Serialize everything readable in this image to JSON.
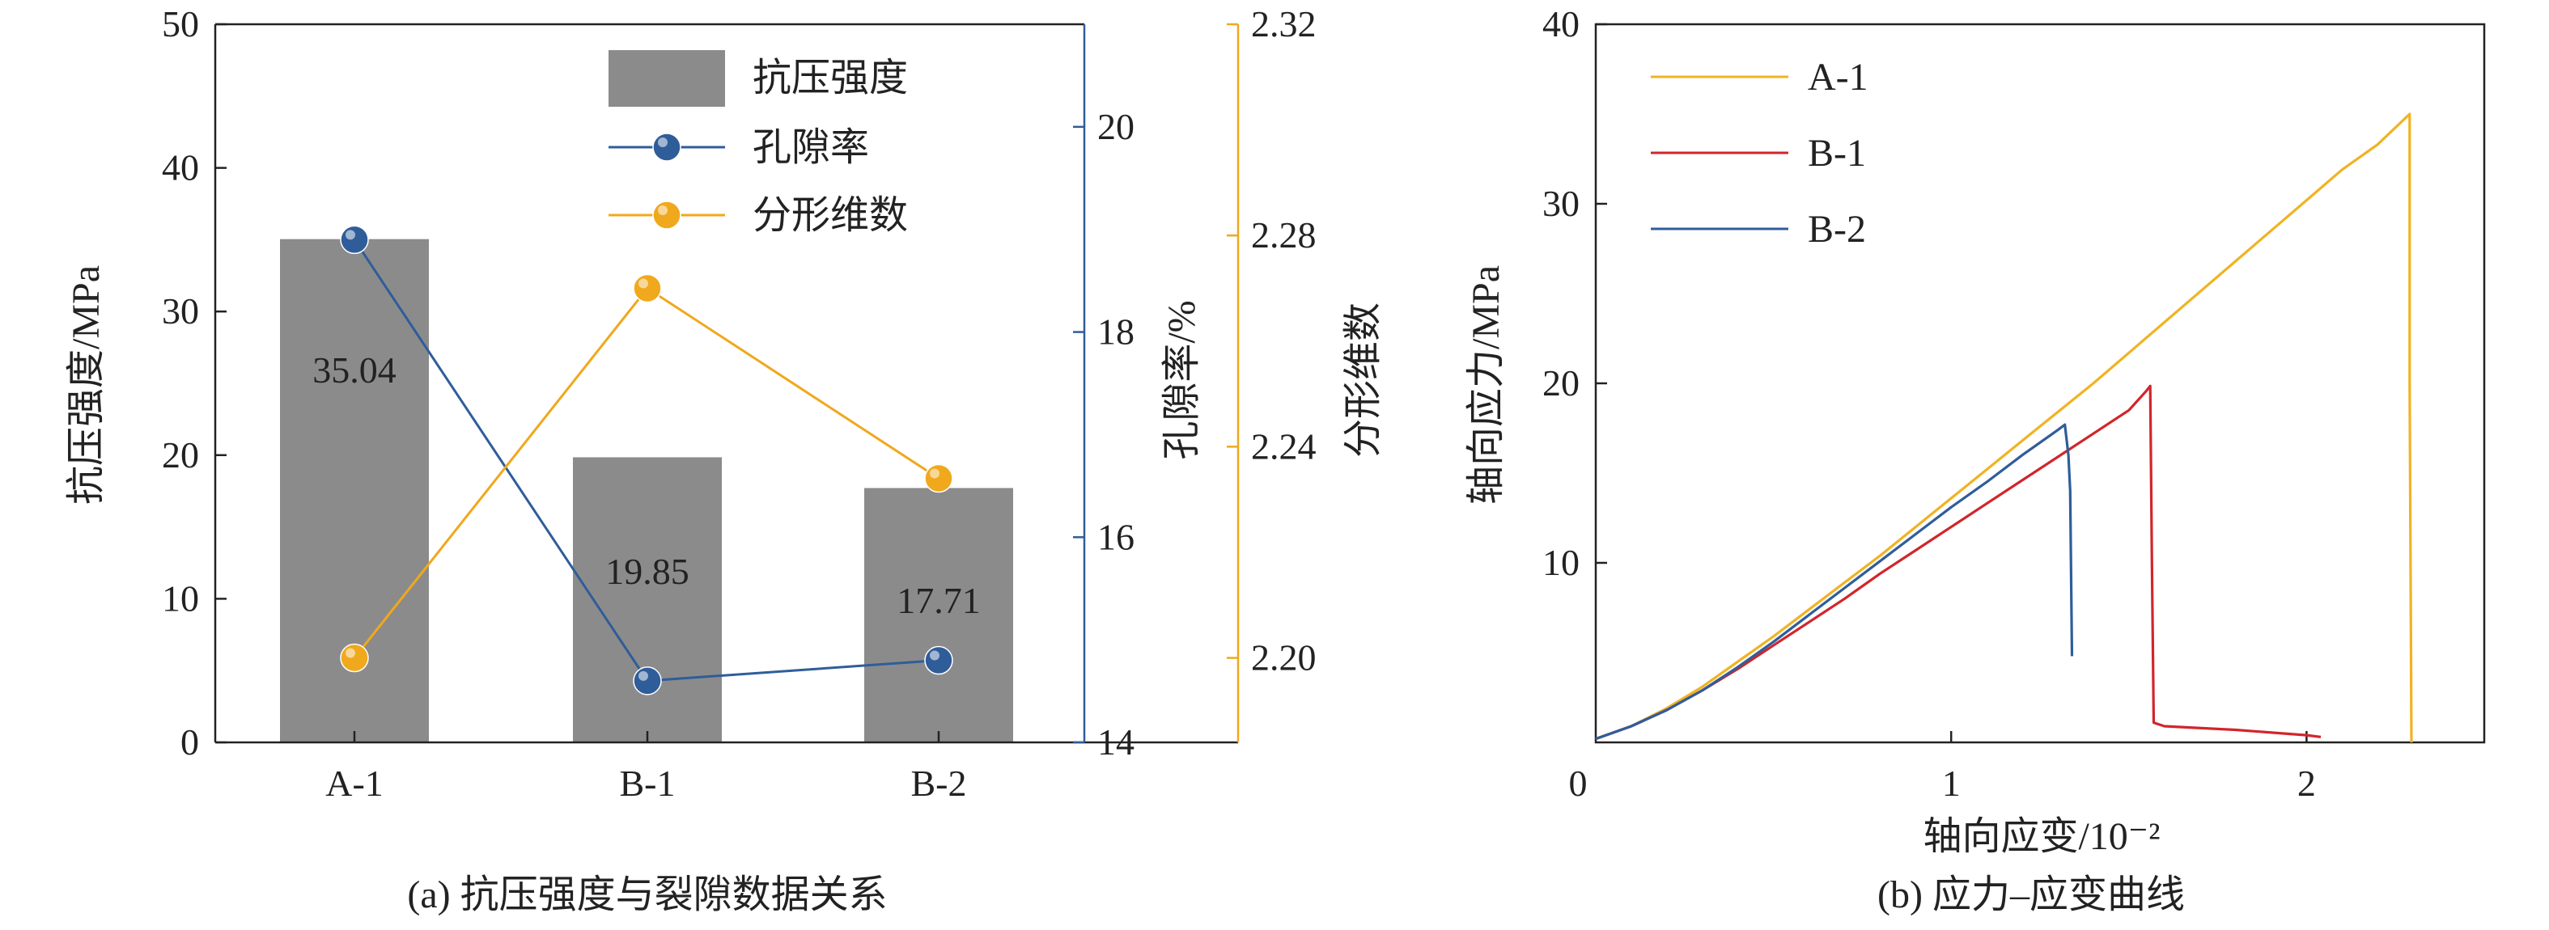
{
  "chart_data": [
    {
      "type": "bar",
      "caption": "(a) 抗压强度与裂隙数据关系",
      "categories": [
        "A-1",
        "B-1",
        "B-2"
      ],
      "series": [
        {
          "name": "抗压强度",
          "type": "bar",
          "axis": "left",
          "values": [
            35.04,
            19.85,
            17.71
          ],
          "labels": [
            "35.04",
            "19.85",
            "17.71"
          ],
          "color": "#8c8b8b"
        },
        {
          "name": "孔隙率",
          "type": "line",
          "axis": "right1",
          "values": [
            18.9,
            14.6,
            14.8
          ],
          "color": "#2f5d9a"
        },
        {
          "name": "分形维数",
          "type": "line",
          "axis": "right2",
          "values": [
            2.2,
            2.27,
            2.234
          ],
          "color": "#f0a81c"
        }
      ],
      "ylabel": "抗压强度/MPa",
      "ylim": [
        0,
        50
      ],
      "yticks": [
        "0",
        "10",
        "20",
        "30",
        "40",
        "50"
      ],
      "y2label": "孔隙率/%",
      "y2lim": [
        14,
        21
      ],
      "y2ticks": [
        "14",
        "16",
        "18",
        "20"
      ],
      "y3label": "分形维数",
      "y3lim": [
        2.184,
        2.32
      ],
      "y3ticks": [
        "2.20",
        "2.24",
        "2.28",
        "2.32"
      ],
      "legend_position": "top-right"
    },
    {
      "type": "line",
      "caption": "(b) 应力–应变曲线",
      "xlabel": "轴向应变/10⁻²",
      "ylabel": "轴向应力/MPa",
      "xlim": [
        0,
        2.5
      ],
      "ylim": [
        0,
        40
      ],
      "xticks": [
        "0",
        "1",
        "2"
      ],
      "yticks": [
        "10",
        "20",
        "30",
        "40"
      ],
      "legend_position": "top-left",
      "series": [
        {
          "name": "A-1",
          "color": "#f0b323",
          "x": [
            0,
            0.1,
            0.2,
            0.3,
            0.4,
            0.5,
            0.6,
            0.7,
            0.8,
            0.9,
            1.0,
            1.1,
            1.2,
            1.3,
            1.4,
            1.5,
            1.6,
            1.7,
            1.8,
            1.9,
            2.0,
            2.1,
            2.2,
            2.29,
            2.29,
            2.295
          ],
          "y": [
            0.2,
            0.9,
            1.9,
            3.1,
            4.5,
            5.9,
            7.4,
            8.9,
            10.4,
            12.0,
            13.6,
            15.2,
            16.8,
            18.4,
            20.0,
            21.7,
            23.4,
            25.1,
            26.8,
            28.5,
            30.2,
            31.9,
            33.3,
            35.0,
            20.0,
            0.0
          ]
        },
        {
          "name": "B-1",
          "color": "#d1262b",
          "x": [
            0,
            0.1,
            0.2,
            0.3,
            0.4,
            0.5,
            0.6,
            0.7,
            0.8,
            0.9,
            1.0,
            1.1,
            1.2,
            1.3,
            1.4,
            1.5,
            1.55,
            1.56,
            1.565,
            1.57,
            1.6,
            1.8,
            2.0,
            2.04
          ],
          "y": [
            0.2,
            0.9,
            1.8,
            2.9,
            4.1,
            5.4,
            6.7,
            8.0,
            9.4,
            10.7,
            12.0,
            13.3,
            14.6,
            15.9,
            17.2,
            18.5,
            19.6,
            19.85,
            10.0,
            1.1,
            0.9,
            0.7,
            0.4,
            0.3
          ]
        },
        {
          "name": "B-2",
          "color": "#2f5d9a",
          "x": [
            0,
            0.1,
            0.2,
            0.3,
            0.4,
            0.5,
            0.6,
            0.7,
            0.8,
            0.9,
            1.0,
            1.1,
            1.2,
            1.3,
            1.32,
            1.33,
            1.335,
            1.34
          ],
          "y": [
            0.2,
            0.9,
            1.8,
            2.9,
            4.2,
            5.6,
            7.1,
            8.6,
            10.1,
            11.6,
            13.1,
            14.5,
            16.0,
            17.4,
            17.7,
            16.0,
            14.0,
            4.8
          ]
        }
      ]
    }
  ]
}
